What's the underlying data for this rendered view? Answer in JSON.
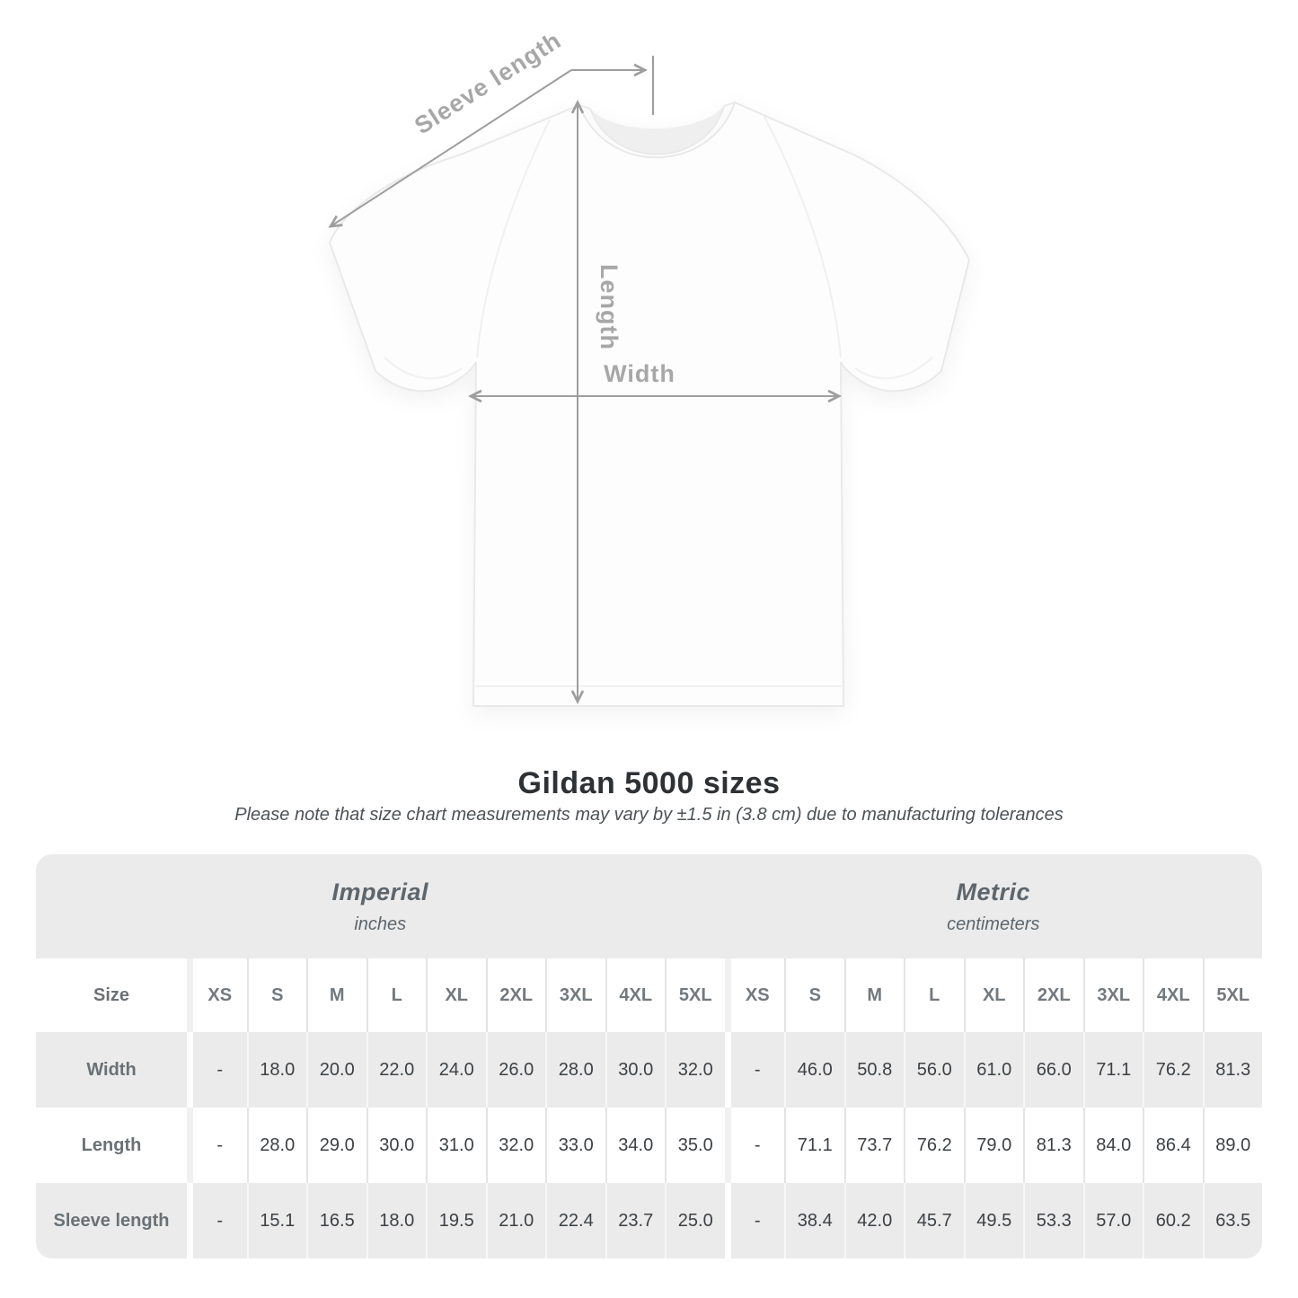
{
  "heading": {
    "title": "Gildan 5000 sizes",
    "subtitle": "Please note that size chart measurements may vary by ±1.5 in (3.8 cm) due to manufacturing tolerances"
  },
  "diagram": {
    "labels": {
      "sleeve_length": "Sleeve length",
      "length": "Length",
      "width": "Width"
    },
    "line_color": "#9e9e9e",
    "label_color": "#a7a7a7"
  },
  "table": {
    "size_column_header": "Size",
    "groups": [
      {
        "label": "Imperial",
        "unit": "inches"
      },
      {
        "label": "Metric",
        "unit": "centimeters"
      }
    ],
    "sizes": [
      "XS",
      "S",
      "M",
      "L",
      "XL",
      "2XL",
      "3XL",
      "4XL",
      "5XL"
    ],
    "rows": [
      {
        "label": "Width",
        "imperial": [
          "-",
          "18.0",
          "20.0",
          "22.0",
          "24.0",
          "26.0",
          "28.0",
          "30.0",
          "32.0"
        ],
        "metric": [
          "-",
          "46.0",
          "50.8",
          "56.0",
          "61.0",
          "66.0",
          "71.1",
          "76.2",
          "81.3"
        ]
      },
      {
        "label": "Length",
        "imperial": [
          "-",
          "28.0",
          "29.0",
          "30.0",
          "31.0",
          "32.0",
          "33.0",
          "34.0",
          "35.0"
        ],
        "metric": [
          "-",
          "71.1",
          "73.7",
          "76.2",
          "79.0",
          "81.3",
          "84.0",
          "86.4",
          "89.0"
        ]
      },
      {
        "label": "Sleeve length",
        "imperial": [
          "-",
          "15.1",
          "16.5",
          "18.0",
          "19.5",
          "21.0",
          "22.4",
          "23.7",
          "25.0"
        ],
        "metric": [
          "-",
          "38.4",
          "42.0",
          "45.7",
          "49.5",
          "53.3",
          "57.0",
          "60.2",
          "63.5"
        ]
      }
    ],
    "colors": {
      "band_bg": "#ebebeb",
      "row_alt_bg": "#ebebeb",
      "row_bg": "#ffffff"
    }
  },
  "chart_data": {
    "type": "table",
    "title": "Gildan 5000 sizes",
    "columns": [
      "Size",
      "XS",
      "S",
      "M",
      "L",
      "XL",
      "2XL",
      "3XL",
      "4XL",
      "5XL"
    ],
    "units": [
      "inches",
      "centimeters"
    ],
    "rows_imperial": [
      [
        "Width",
        "-",
        18.0,
        20.0,
        22.0,
        24.0,
        26.0,
        28.0,
        30.0,
        32.0
      ],
      [
        "Length",
        "-",
        28.0,
        29.0,
        30.0,
        31.0,
        32.0,
        33.0,
        34.0,
        35.0
      ],
      [
        "Sleeve length",
        "-",
        15.1,
        16.5,
        18.0,
        19.5,
        21.0,
        22.4,
        23.7,
        25.0
      ]
    ],
    "rows_metric": [
      [
        "Width",
        "-",
        46.0,
        50.8,
        56.0,
        61.0,
        66.0,
        71.1,
        76.2,
        81.3
      ],
      [
        "Length",
        "-",
        71.1,
        73.7,
        76.2,
        79.0,
        81.3,
        84.0,
        86.4,
        89.0
      ],
      [
        "Sleeve length",
        "-",
        38.4,
        42.0,
        45.7,
        49.5,
        53.3,
        57.0,
        60.2,
        63.5
      ]
    ]
  }
}
